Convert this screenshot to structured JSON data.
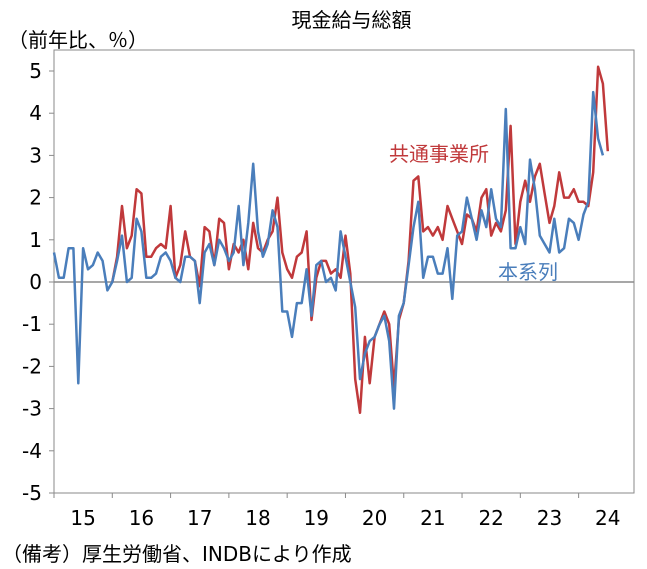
{
  "chart_data": {
    "type": "line",
    "title": "現金給与総額",
    "ylabel": "（前年比、％）",
    "source": "（備考）厚生労働省、INDBにより作成",
    "ylim": [
      -5,
      5
    ],
    "yticks": [
      5,
      4,
      3,
      2,
      1,
      0,
      -1,
      -2,
      -3,
      -4,
      -5
    ],
    "xlim": [
      2015.0,
      2024.95
    ],
    "xticks": [
      "15",
      "16",
      "17",
      "18",
      "19",
      "20",
      "21",
      "22",
      "23",
      "24"
    ],
    "series": [
      {
        "name": "共通事業所",
        "color": "#c0393b",
        "start": 2016.0,
        "values": [
          0.0,
          0.6,
          1.8,
          0.8,
          1.1,
          2.2,
          2.1,
          0.6,
          0.6,
          0.8,
          0.9,
          0.8,
          1.8,
          0.1,
          0.4,
          1.2,
          0.6,
          0.5,
          -0.1,
          1.3,
          1.2,
          0.4,
          1.5,
          1.4,
          0.3,
          0.9,
          0.7,
          1.0,
          0.3,
          1.4,
          0.8,
          0.7,
          1.0,
          1.2,
          2.0,
          0.7,
          0.3,
          0.1,
          0.6,
          0.7,
          1.2,
          -0.9,
          0.1,
          0.5,
          0.5,
          0.2,
          0.3,
          0.1,
          1.1,
          0.2,
          -2.3,
          -3.1,
          -1.3,
          -2.4,
          -1.3,
          -1.0,
          -0.7,
          -1.0,
          -2.5,
          -0.9,
          -0.5,
          0.5,
          2.4,
          2.5,
          1.2,
          1.3,
          1.1,
          1.3,
          1.0,
          1.8,
          1.5,
          1.2,
          0.9,
          1.6,
          1.5,
          1.2,
          2.0,
          2.2,
          1.1,
          1.4,
          1.2,
          1.7,
          3.7,
          0.9,
          1.9,
          2.4,
          1.9,
          2.5,
          2.8,
          2.1,
          1.4,
          1.8,
          2.6,
          2.0,
          2.0,
          2.2,
          1.9,
          1.9,
          1.8,
          2.6,
          5.1,
          4.7,
          3.1
        ]
      },
      {
        "name": "本系列",
        "color": "#4a7ebb",
        "start": 2015.0,
        "values": [
          0.7,
          0.1,
          0.1,
          0.8,
          0.8,
          -2.4,
          0.8,
          0.3,
          0.4,
          0.7,
          0.5,
          -0.2,
          0.0,
          0.5,
          1.1,
          0.0,
          0.1,
          1.5,
          1.2,
          0.1,
          0.1,
          0.2,
          0.6,
          0.7,
          0.5,
          0.1,
          0.0,
          0.6,
          0.6,
          0.5,
          -0.5,
          0.7,
          0.9,
          0.4,
          1.0,
          0.8,
          0.5,
          0.7,
          1.8,
          0.4,
          1.4,
          2.8,
          1.2,
          0.6,
          0.9,
          1.7,
          1.3,
          -0.7,
          -0.7,
          -1.3,
          -0.5,
          -0.5,
          0.3,
          -0.8,
          0.4,
          0.5,
          0.0,
          0.1,
          -0.2,
          1.2,
          0.6,
          0.0,
          -0.6,
          -2.3,
          -1.7,
          -1.4,
          -1.3,
          -1.0,
          -0.8,
          -1.4,
          -3.0,
          -0.8,
          -0.5,
          0.4,
          1.3,
          1.9,
          0.1,
          0.6,
          0.6,
          0.2,
          0.2,
          0.8,
          -0.4,
          1.1,
          1.2,
          2.0,
          1.5,
          1.0,
          1.7,
          1.3,
          2.2,
          1.5,
          1.3,
          4.1,
          0.8,
          0.8,
          1.3,
          0.9,
          2.9,
          2.2,
          1.1,
          0.9,
          0.7,
          1.5,
          0.7,
          0.8,
          1.5,
          1.4,
          1.0,
          1.6,
          1.9,
          4.5,
          3.4,
          3.0
        ]
      }
    ]
  }
}
